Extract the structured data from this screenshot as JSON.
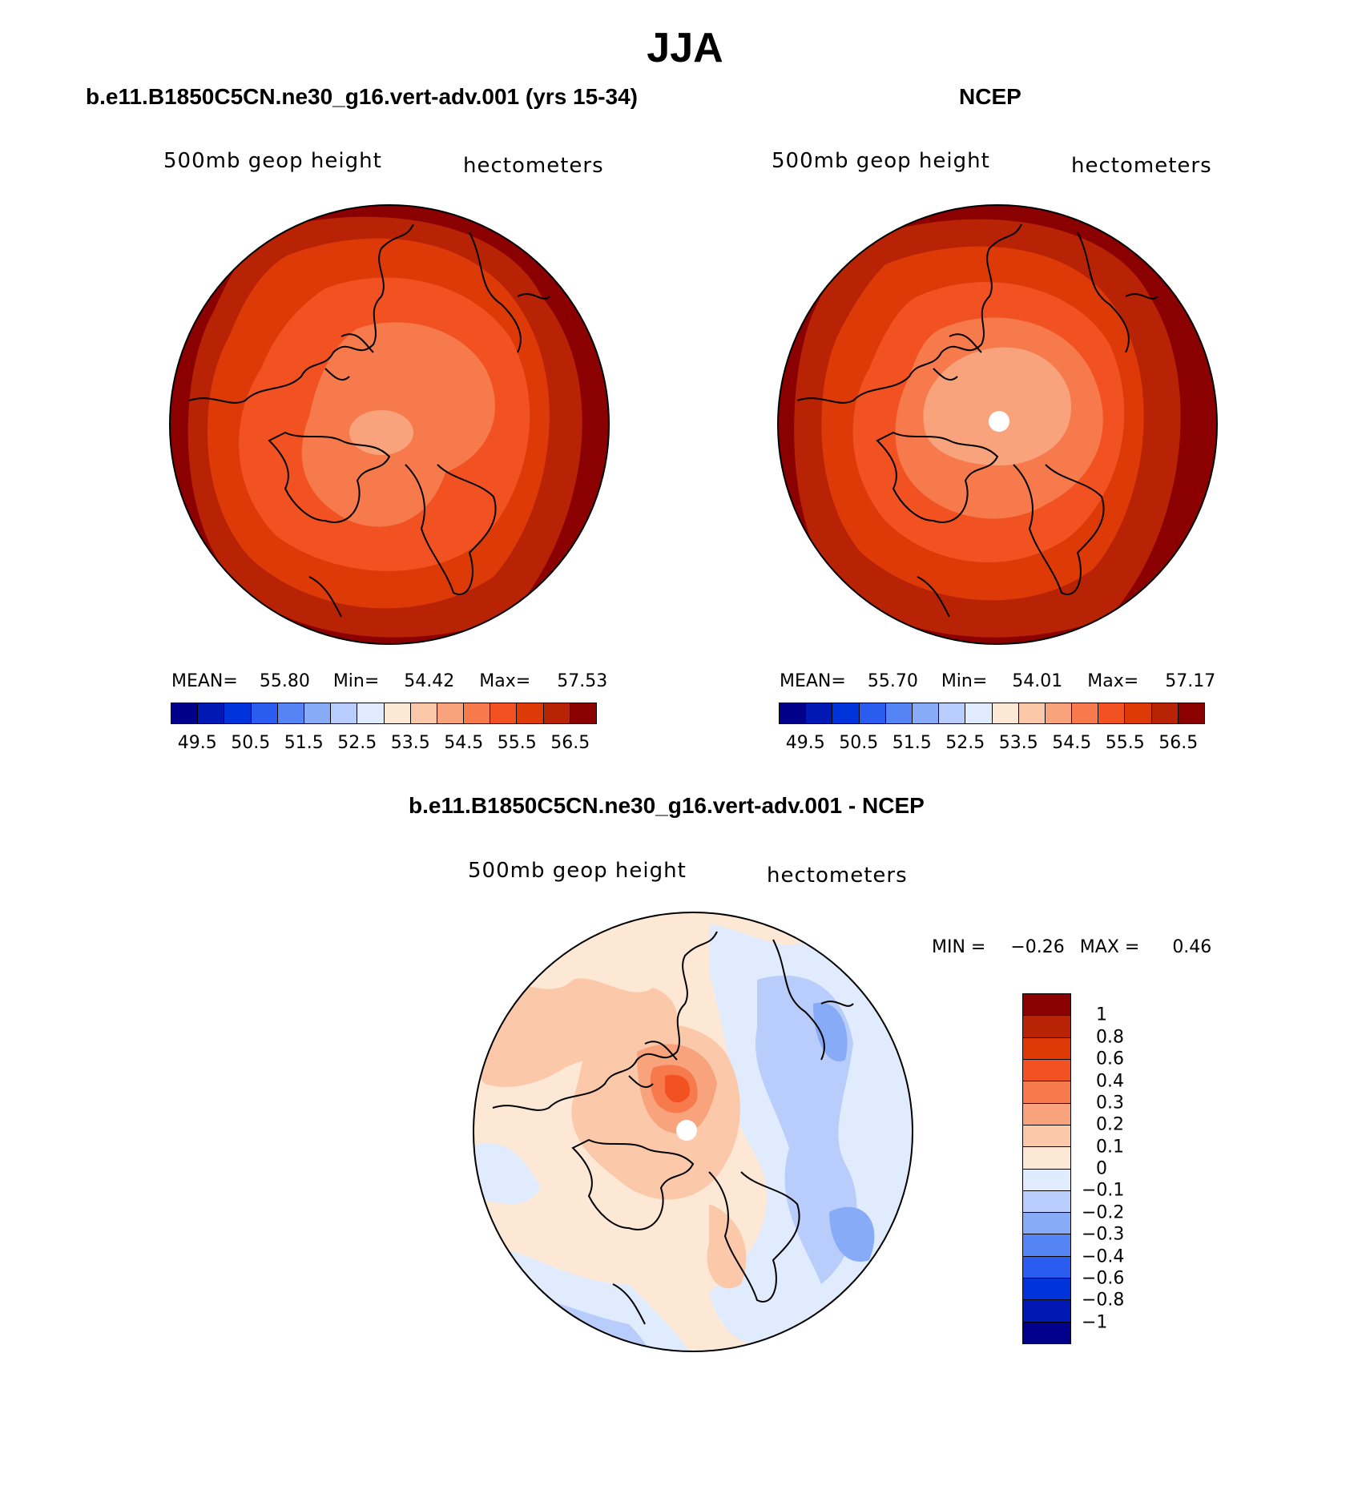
{
  "season": "JJA",
  "panels": {
    "model": {
      "title": "b.e11.B1850C5CN.ne30_g16.vert-adv.001 (yrs 15-34)",
      "variable": "500mb geop height",
      "units": "hectometers",
      "stats": {
        "mean_label": "MEAN=",
        "mean": "55.80",
        "min_label": "Min=",
        "min": "54.42",
        "max_label": "Max=",
        "max": "57.53"
      }
    },
    "obs": {
      "title": "NCEP",
      "variable": "500mb geop height",
      "units": "hectometers",
      "stats": {
        "mean_label": "MEAN=",
        "mean": "55.70",
        "min_label": "Min=",
        "min": "54.01",
        "max_label": "Max=",
        "max": "57.17"
      }
    },
    "diff": {
      "title": "b.e11.B1850C5CN.ne30_g16.vert-adv.001 - NCEP",
      "variable": "500mb geop height",
      "units": "hectometers",
      "stats": {
        "min_label": "MIN =",
        "min": "−0.26",
        "max_label": "MAX =",
        "max": "0.46"
      }
    }
  },
  "colorbars": {
    "abs_colors": [
      "#00008b",
      "#0019b4",
      "#0033d9",
      "#2a5cf0",
      "#5585f5",
      "#88abf8",
      "#b8cdfb",
      "#e0ecfd",
      "#fde8d6",
      "#fbc9aa",
      "#f8a37c",
      "#f67a4c",
      "#f25222",
      "#dd3a08",
      "#b82306",
      "#8b0000"
    ],
    "abs_ticks": [
      "49.5",
      "50.5",
      "51.5",
      "52.5",
      "53.5",
      "54.5",
      "55.5",
      "56.5"
    ],
    "diff_colors": [
      "#8b0000",
      "#b82306",
      "#dd3a08",
      "#f25222",
      "#f67a4c",
      "#f8a37c",
      "#fbc9aa",
      "#fde8d6",
      "#e0ecfd",
      "#b8cdfb",
      "#88abf8",
      "#5585f5",
      "#2a5cf0",
      "#0033d9",
      "#0019b4",
      "#00008b"
    ],
    "diff_ticks": [
      "1",
      "0.8",
      "0.6",
      "0.4",
      "0.3",
      "0.2",
      "0.1",
      "0",
      "−0.1",
      "−0.2",
      "−0.3",
      "−0.4",
      "−0.6",
      "−0.8",
      "−1"
    ]
  },
  "chart_data": [
    {
      "type": "heatmap",
      "title": "b.e11.B1850C5CN.ne30_g16.vert-adv.001 (yrs 15-34)",
      "field": "500mb geop height",
      "units": "hectometers",
      "projection": "polar stereographic (North Pole)",
      "levels": [
        49.5,
        50,
        50.5,
        51,
        51.5,
        52,
        52.5,
        53,
        53.5,
        54,
        54.5,
        55,
        55.5,
        56,
        56.5
      ],
      "mean": 55.8,
      "min": 54.42,
      "max": 57.53
    },
    {
      "type": "heatmap",
      "title": "NCEP",
      "field": "500mb geop height",
      "units": "hectometers",
      "projection": "polar stereographic (North Pole)",
      "levels": [
        49.5,
        50,
        50.5,
        51,
        51.5,
        52,
        52.5,
        53,
        53.5,
        54,
        54.5,
        55,
        55.5,
        56,
        56.5
      ],
      "mean": 55.7,
      "min": 54.01,
      "max": 57.17
    },
    {
      "type": "heatmap",
      "title": "b.e11.B1850C5CN.ne30_g16.vert-adv.001 - NCEP",
      "field": "500mb geop height",
      "units": "hectometers",
      "projection": "polar stereographic (North Pole)",
      "levels": [
        -1,
        -0.8,
        -0.6,
        -0.4,
        -0.3,
        -0.2,
        -0.1,
        0,
        0.1,
        0.2,
        0.3,
        0.4,
        0.6,
        0.8,
        1
      ],
      "min": -0.26,
      "max": 0.46
    }
  ]
}
